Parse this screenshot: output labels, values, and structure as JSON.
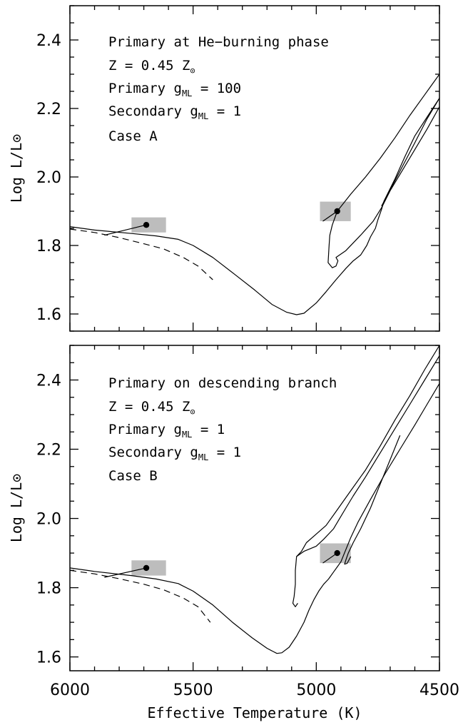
{
  "chart_data": [
    {
      "type": "line",
      "panel": "top",
      "xlabel": "Effective Temperature (K)",
      "ylabel": "Log L/L⊙",
      "xlim": [
        6000,
        4500
      ],
      "ylim": [
        1.55,
        2.5
      ],
      "x_ticks": [
        "6000",
        "5500",
        "5000",
        "4500"
      ],
      "y_ticks": [
        "1.6",
        "1.8",
        "2.0",
        "2.2",
        "2.4"
      ],
      "annotations": {
        "line1": "Primary at He−burning phase",
        "line2_main": "Z = 0.45 Z",
        "line2_sub": "⊙",
        "line3_main": "Primary g",
        "line3_sub": "ML",
        "line3_value": " = 100",
        "line4_main": "Secondary g",
        "line4_sub": "ML",
        "line4_value": " = 1",
        "line5": "Case A"
      },
      "markers": [
        {
          "teff": 5690,
          "logL": 1.86,
          "box_teff": [
            5750,
            5610
          ],
          "box_logL": [
            1.838,
            1.882
          ]
        },
        {
          "teff": 4915,
          "logL": 1.9,
          "box_teff": [
            4985,
            4860
          ],
          "box_logL": [
            1.871,
            1.928
          ]
        }
      ],
      "series": [
        {
          "style": "solid",
          "points": [
            [
              6000,
              1.855
            ],
            [
              5900,
              1.845
            ],
            [
              5750,
              1.835
            ],
            [
              5650,
              1.828
            ],
            [
              5560,
              1.818
            ],
            [
              5500,
              1.8
            ],
            [
              5420,
              1.765
            ],
            [
              5330,
              1.715
            ],
            [
              5250,
              1.67
            ],
            [
              5180,
              1.628
            ],
            [
              5120,
              1.605
            ],
            [
              5080,
              1.598
            ],
            [
              5050,
              1.602
            ],
            [
              5000,
              1.632
            ],
            [
              4960,
              1.665
            ],
            [
              4920,
              1.7
            ],
            [
              4880,
              1.733
            ],
            [
              4850,
              1.755
            ],
            [
              4820,
              1.772
            ],
            [
              4795,
              1.8
            ],
            [
              4780,
              1.825
            ],
            [
              4760,
              1.85
            ],
            [
              4750,
              1.875
            ],
            [
              4735,
              1.905
            ],
            [
              4725,
              1.93
            ],
            [
              4680,
              1.995
            ],
            [
              4640,
              2.06
            ],
            [
              4600,
              2.12
            ],
            [
              4550,
              2.175
            ],
            [
              4500,
              2.23
            ]
          ]
        },
        {
          "style": "solid",
          "points": [
            [
              4500,
              2.3
            ],
            [
              4560,
              2.24
            ],
            [
              4620,
              2.18
            ],
            [
              4680,
              2.115
            ],
            [
              4740,
              2.055
            ],
            [
              4800,
              2.0
            ],
            [
              4860,
              1.95
            ],
            [
              4915,
              1.9
            ],
            [
              4935,
              1.86
            ],
            [
              4945,
              1.83
            ],
            [
              4948,
              1.8
            ],
            [
              4950,
              1.775
            ],
            [
              4952,
              1.75
            ],
            [
              4935,
              1.735
            ],
            [
              4920,
              1.74
            ],
            [
              4912,
              1.755
            ],
            [
              4920,
              1.765
            ],
            [
              4880,
              1.785
            ],
            [
              4820,
              1.83
            ],
            [
              4770,
              1.87
            ],
            [
              4735,
              1.91
            ],
            [
              4700,
              1.96
            ],
            [
              4650,
              2.02
            ],
            [
              4600,
              2.08
            ],
            [
              4550,
              2.14
            ],
            [
              4500,
              2.205
            ]
          ]
        },
        {
          "style": "solid",
          "points": [
            [
              4500,
              2.23
            ],
            [
              4550,
              2.17
            ],
            [
              4600,
              2.1
            ],
            [
              4640,
              2.045
            ],
            [
              4680,
              1.99
            ],
            [
              4720,
              1.935
            ],
            [
              4735,
              1.915
            ]
          ]
        }
      ],
      "dashed": [
        [
          6000,
          1.848
        ],
        [
          5900,
          1.838
        ],
        [
          5800,
          1.823
        ],
        [
          5700,
          1.805
        ],
        [
          5620,
          1.79
        ],
        [
          5540,
          1.765
        ],
        [
          5480,
          1.74
        ],
        [
          5420,
          1.7
        ]
      ],
      "connector_start": [
        5860,
        1.83
      ]
    },
    {
      "type": "line",
      "panel": "bottom",
      "xlabel": "Effective Temperature (K)",
      "ylabel": "Log L/L⊙",
      "xlim": [
        6000,
        4500
      ],
      "ylim": [
        1.56,
        2.5
      ],
      "x_ticks": [
        "6000",
        "5500",
        "5000",
        "4500"
      ],
      "y_ticks": [
        "1.6",
        "1.8",
        "2.0",
        "2.2",
        "2.4"
      ],
      "annotations": {
        "line1": "Primary on descending branch",
        "line2_main": "Z = 0.45 Z",
        "line2_sub": "⊙",
        "line3_main": "Primary g",
        "line3_sub": "ML",
        "line3_value": " = 1",
        "line4_main": "Secondary g",
        "line4_sub": "ML",
        "line4_value": " = 1",
        "line5": "Case B"
      },
      "markers": [
        {
          "teff": 5690,
          "logL": 1.857,
          "box_teff": [
            5750,
            5610
          ],
          "box_logL": [
            1.835,
            1.879
          ]
        },
        {
          "teff": 4915,
          "logL": 1.9,
          "box_teff": [
            4985,
            4860
          ],
          "box_logL": [
            1.871,
            1.928
          ]
        }
      ],
      "series": [
        {
          "style": "solid",
          "points": [
            [
              6000,
              1.857
            ],
            [
              5900,
              1.847
            ],
            [
              5750,
              1.835
            ],
            [
              5650,
              1.825
            ],
            [
              5560,
              1.812
            ],
            [
              5500,
              1.79
            ],
            [
              5420,
              1.75
            ],
            [
              5340,
              1.7
            ],
            [
              5260,
              1.655
            ],
            [
              5200,
              1.625
            ],
            [
              5160,
              1.61
            ],
            [
              5140,
              1.612
            ],
            [
              5110,
              1.628
            ],
            [
              5080,
              1.66
            ],
            [
              5050,
              1.7
            ],
            [
              5030,
              1.735
            ],
            [
              5010,
              1.765
            ],
            [
              4990,
              1.79
            ],
            [
              4970,
              1.81
            ],
            [
              4950,
              1.825
            ],
            [
              4930,
              1.845
            ],
            [
              4915,
              1.86
            ],
            [
              4900,
              1.875
            ],
            [
              4880,
              1.91
            ],
            [
              4860,
              1.945
            ],
            [
              4830,
              1.99
            ],
            [
              4780,
              2.055
            ],
            [
              4720,
              2.13
            ],
            [
              4660,
              2.2
            ],
            [
              4600,
              2.27
            ],
            [
              4550,
              2.33
            ],
            [
              4500,
              2.39
            ]
          ]
        },
        {
          "style": "solid",
          "points": [
            [
              4500,
              2.5
            ],
            [
              4560,
              2.43
            ],
            [
              4620,
              2.355
            ],
            [
              4680,
              2.285
            ],
            [
              4740,
              2.21
            ],
            [
              4800,
              2.14
            ],
            [
              4850,
              2.09
            ],
            [
              4880,
              2.06
            ],
            [
              4920,
              2.02
            ],
            [
              4960,
              1.98
            ],
            [
              5000,
              1.955
            ],
            [
              5040,
              1.93
            ],
            [
              5060,
              1.905
            ],
            [
              5080,
              1.89
            ],
            [
              5085,
              1.85
            ],
            [
              5085,
              1.81
            ],
            [
              5090,
              1.775
            ],
            [
              5095,
              1.755
            ],
            [
              5085,
              1.745
            ],
            [
              5075,
              1.755
            ]
          ]
        },
        {
          "style": "solid",
          "points": [
            [
              4500,
              2.47
            ],
            [
              4560,
              2.4
            ],
            [
              4620,
              2.33
            ],
            [
              4680,
              2.26
            ],
            [
              4740,
              2.19
            ],
            [
              4800,
              2.12
            ],
            [
              4850,
              2.065
            ],
            [
              4880,
              2.03
            ],
            [
              4905,
              2.0
            ],
            [
              4930,
              1.97
            ],
            [
              4970,
              1.94
            ],
            [
              5000,
              1.92
            ],
            [
              5050,
              1.905
            ],
            [
              5080,
              1.89
            ]
          ]
        },
        {
          "style": "solid",
          "points": [
            [
              4660,
              2.24
            ],
            [
              4700,
              2.17
            ],
            [
              4740,
              2.1
            ],
            [
              4780,
              2.03
            ],
            [
              4820,
              1.97
            ],
            [
              4850,
              1.93
            ],
            [
              4870,
              1.9
            ],
            [
              4880,
              1.88
            ],
            [
              4885,
              1.868
            ],
            [
              4875,
              1.87
            ],
            [
              4860,
              1.89
            ]
          ]
        }
      ],
      "dashed": [
        [
          6000,
          1.85
        ],
        [
          5900,
          1.84
        ],
        [
          5800,
          1.826
        ],
        [
          5700,
          1.81
        ],
        [
          5620,
          1.794
        ],
        [
          5540,
          1.77
        ],
        [
          5480,
          1.745
        ],
        [
          5430,
          1.7
        ]
      ],
      "connector_start": [
        5860,
        1.83
      ]
    }
  ]
}
